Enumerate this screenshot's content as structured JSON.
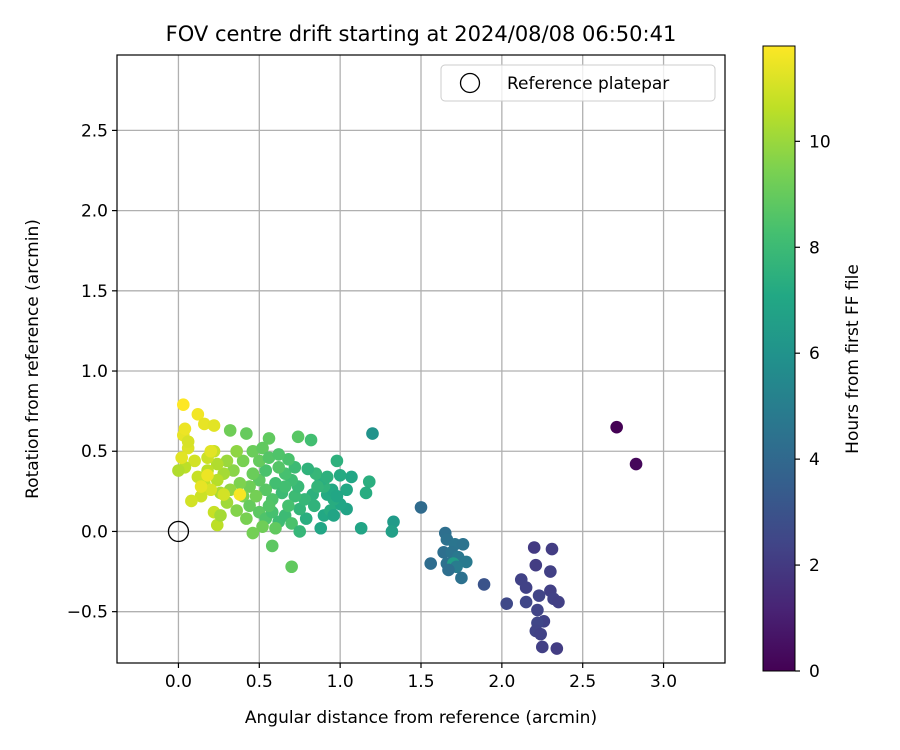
{
  "chart_data": {
    "type": "scatter",
    "title": "FOV centre drift starting at 2024/08/08 06:50:41",
    "xlabel": "Angular distance from reference (arcmin)",
    "ylabel": "Rotation from reference (arcmin)",
    "xlim": [
      -0.38,
      3.38
    ],
    "ylim": [
      -0.82,
      2.97
    ],
    "xticks": [
      0.0,
      0.5,
      1.0,
      1.5,
      2.0,
      2.5,
      3.0
    ],
    "xtick_labels": [
      "0.0",
      "0.5",
      "1.0",
      "1.5",
      "2.0",
      "2.5",
      "3.0"
    ],
    "yticks": [
      -0.5,
      0.0,
      0.5,
      1.0,
      1.5,
      2.0,
      2.5
    ],
    "ytick_labels": [
      "−0.5",
      "0.0",
      "0.5",
      "1.0",
      "1.5",
      "2.0",
      "2.5"
    ],
    "grid": true,
    "legend": {
      "placement": "top-right",
      "entries": [
        "Reference platepar"
      ]
    },
    "reference_point": {
      "x": 0.0,
      "y": 0.0,
      "name": "Reference platepar"
    },
    "colorbar": {
      "label": "Hours from first FF file",
      "range": [
        0,
        11.8
      ],
      "ticks": [
        0,
        2,
        4,
        6,
        8,
        10
      ],
      "tick_labels": [
        "0",
        "2",
        "4",
        "6",
        "8",
        "10"
      ],
      "colormap": "viridis"
    },
    "points": [
      {
        "x": 2.71,
        "y": 0.65,
        "c": 0.0
      },
      {
        "x": 2.83,
        "y": 0.42,
        "c": 0.2
      },
      {
        "x": 2.2,
        "y": -0.1,
        "c": 2.0
      },
      {
        "x": 2.31,
        "y": -0.11,
        "c": 2.1
      },
      {
        "x": 2.21,
        "y": -0.21,
        "c": 2.1
      },
      {
        "x": 2.3,
        "y": -0.25,
        "c": 2.2
      },
      {
        "x": 2.12,
        "y": -0.3,
        "c": 2.3
      },
      {
        "x": 2.15,
        "y": -0.35,
        "c": 2.3
      },
      {
        "x": 2.3,
        "y": -0.37,
        "c": 2.2
      },
      {
        "x": 2.23,
        "y": -0.4,
        "c": 2.4
      },
      {
        "x": 2.32,
        "y": -0.42,
        "c": 2.3
      },
      {
        "x": 2.15,
        "y": -0.44,
        "c": 2.5
      },
      {
        "x": 2.35,
        "y": -0.44,
        "c": 2.2
      },
      {
        "x": 2.03,
        "y": -0.45,
        "c": 2.6
      },
      {
        "x": 2.22,
        "y": -0.49,
        "c": 2.4
      },
      {
        "x": 2.26,
        "y": -0.56,
        "c": 2.3
      },
      {
        "x": 2.22,
        "y": -0.57,
        "c": 2.5
      },
      {
        "x": 2.21,
        "y": -0.62,
        "c": 2.4
      },
      {
        "x": 2.24,
        "y": -0.64,
        "c": 2.3
      },
      {
        "x": 2.25,
        "y": -0.72,
        "c": 2.2
      },
      {
        "x": 2.34,
        "y": -0.73,
        "c": 2.1
      },
      {
        "x": 1.89,
        "y": -0.33,
        "c": 3.0
      },
      {
        "x": 1.5,
        "y": 0.15,
        "c": 4.1
      },
      {
        "x": 1.65,
        "y": -0.01,
        "c": 4.3
      },
      {
        "x": 1.66,
        "y": -0.05,
        "c": 4.4
      },
      {
        "x": 1.71,
        "y": -0.08,
        "c": 4.6
      },
      {
        "x": 1.76,
        "y": -0.08,
        "c": 4.5
      },
      {
        "x": 1.64,
        "y": -0.13,
        "c": 4.3
      },
      {
        "x": 1.69,
        "y": -0.13,
        "c": 4.5
      },
      {
        "x": 1.73,
        "y": -0.16,
        "c": 4.7
      },
      {
        "x": 1.78,
        "y": -0.19,
        "c": 4.8
      },
      {
        "x": 1.56,
        "y": -0.2,
        "c": 4.2
      },
      {
        "x": 1.66,
        "y": -0.2,
        "c": 4.4
      },
      {
        "x": 1.7,
        "y": -0.2,
        "c": 6.5
      },
      {
        "x": 1.72,
        "y": -0.22,
        "c": 4.9
      },
      {
        "x": 1.67,
        "y": -0.24,
        "c": 4.3
      },
      {
        "x": 1.75,
        "y": -0.29,
        "c": 4.4
      },
      {
        "x": 1.2,
        "y": 0.61,
        "c": 6.0
      },
      {
        "x": 1.33,
        "y": 0.06,
        "c": 6.4
      },
      {
        "x": 1.32,
        "y": 0.0,
        "c": 6.6
      },
      {
        "x": 1.13,
        "y": 0.02,
        "c": 6.9
      },
      {
        "x": 1.18,
        "y": 0.31,
        "c": 7.4
      },
      {
        "x": 1.16,
        "y": 0.24,
        "c": 7.3
      },
      {
        "x": 1.07,
        "y": 0.34,
        "c": 7.0
      },
      {
        "x": 1.0,
        "y": 0.35,
        "c": 7.2
      },
      {
        "x": 1.04,
        "y": 0.26,
        "c": 7.1
      },
      {
        "x": 0.98,
        "y": 0.44,
        "c": 7.5
      },
      {
        "x": 0.82,
        "y": 0.57,
        "c": 8.2
      },
      {
        "x": 0.74,
        "y": 0.59,
        "c": 8.7
      },
      {
        "x": 0.56,
        "y": 0.58,
        "c": 8.9
      },
      {
        "x": 1.04,
        "y": 0.14,
        "c": 6.8
      },
      {
        "x": 1.0,
        "y": 0.17,
        "c": 7.0
      },
      {
        "x": 0.96,
        "y": 0.2,
        "c": 7.3
      },
      {
        "x": 0.92,
        "y": 0.23,
        "c": 7.2
      },
      {
        "x": 0.95,
        "y": 0.26,
        "c": 7.1
      },
      {
        "x": 0.9,
        "y": 0.28,
        "c": 7.6
      },
      {
        "x": 0.88,
        "y": 0.32,
        "c": 7.4
      },
      {
        "x": 0.85,
        "y": 0.36,
        "c": 7.8
      },
      {
        "x": 0.8,
        "y": 0.39,
        "c": 7.6
      },
      {
        "x": 0.83,
        "y": 0.23,
        "c": 7.5
      },
      {
        "x": 0.9,
        "y": 0.1,
        "c": 7.1
      },
      {
        "x": 0.94,
        "y": 0.13,
        "c": 7.3
      },
      {
        "x": 0.88,
        "y": 0.02,
        "c": 7.0
      },
      {
        "x": 0.79,
        "y": 0.08,
        "c": 7.4
      },
      {
        "x": 0.75,
        "y": 0.14,
        "c": 7.7
      },
      {
        "x": 0.78,
        "y": 0.2,
        "c": 7.8
      },
      {
        "x": 0.72,
        "y": 0.22,
        "c": 8.0
      },
      {
        "x": 0.74,
        "y": 0.28,
        "c": 7.9
      },
      {
        "x": 0.7,
        "y": 0.32,
        "c": 8.1
      },
      {
        "x": 0.66,
        "y": 0.36,
        "c": 8.3
      },
      {
        "x": 0.72,
        "y": 0.4,
        "c": 8.0
      },
      {
        "x": 0.68,
        "y": 0.45,
        "c": 8.4
      },
      {
        "x": 0.62,
        "y": 0.4,
        "c": 8.6
      },
      {
        "x": 0.6,
        "y": 0.3,
        "c": 8.2
      },
      {
        "x": 0.64,
        "y": 0.24,
        "c": 8.0
      },
      {
        "x": 0.58,
        "y": 0.2,
        "c": 8.5
      },
      {
        "x": 0.54,
        "y": 0.26,
        "c": 8.7
      },
      {
        "x": 0.5,
        "y": 0.32,
        "c": 8.8
      },
      {
        "x": 0.54,
        "y": 0.38,
        "c": 8.4
      },
      {
        "x": 0.5,
        "y": 0.44,
        "c": 9.0
      },
      {
        "x": 0.46,
        "y": 0.36,
        "c": 9.1
      },
      {
        "x": 0.44,
        "y": 0.28,
        "c": 9.2
      },
      {
        "x": 0.4,
        "y": 0.22,
        "c": 9.4
      },
      {
        "x": 0.44,
        "y": 0.16,
        "c": 9.0
      },
      {
        "x": 0.5,
        "y": 0.12,
        "c": 8.8
      },
      {
        "x": 0.54,
        "y": 0.08,
        "c": 8.5
      },
      {
        "x": 0.58,
        "y": 0.12,
        "c": 8.3
      },
      {
        "x": 0.62,
        "y": 0.06,
        "c": 8.1
      },
      {
        "x": 0.66,
        "y": 0.1,
        "c": 8.0
      },
      {
        "x": 0.7,
        "y": 0.05,
        "c": 8.4
      },
      {
        "x": 0.75,
        "y": 0.0,
        "c": 7.8
      },
      {
        "x": 0.6,
        "y": 0.02,
        "c": 8.9
      },
      {
        "x": 0.52,
        "y": 0.03,
        "c": 9.2
      },
      {
        "x": 0.46,
        "y": -0.01,
        "c": 9.3
      },
      {
        "x": 0.58,
        "y": -0.09,
        "c": 8.8
      },
      {
        "x": 0.7,
        "y": -0.22,
        "c": 8.9
      },
      {
        "x": 0.36,
        "y": 0.13,
        "c": 9.6
      },
      {
        "x": 0.38,
        "y": 0.3,
        "c": 9.5
      },
      {
        "x": 0.34,
        "y": 0.38,
        "c": 9.7
      },
      {
        "x": 0.4,
        "y": 0.44,
        "c": 9.4
      },
      {
        "x": 0.36,
        "y": 0.5,
        "c": 9.8
      },
      {
        "x": 0.3,
        "y": 0.44,
        "c": 10.0
      },
      {
        "x": 0.28,
        "y": 0.36,
        "c": 10.2
      },
      {
        "x": 0.32,
        "y": 0.26,
        "c": 9.9
      },
      {
        "x": 0.3,
        "y": 0.18,
        "c": 10.1
      },
      {
        "x": 0.26,
        "y": 0.24,
        "c": 10.3
      },
      {
        "x": 0.24,
        "y": 0.32,
        "c": 10.5
      },
      {
        "x": 0.24,
        "y": 0.42,
        "c": 10.4
      },
      {
        "x": 0.22,
        "y": 0.5,
        "c": 10.8
      },
      {
        "x": 0.18,
        "y": 0.46,
        "c": 10.9
      },
      {
        "x": 0.18,
        "y": 0.38,
        "c": 10.6
      },
      {
        "x": 0.16,
        "y": 0.3,
        "c": 10.7
      },
      {
        "x": 0.2,
        "y": 0.26,
        "c": 11.1
      },
      {
        "x": 0.14,
        "y": 0.22,
        "c": 10.9
      },
      {
        "x": 0.12,
        "y": 0.34,
        "c": 10.8
      },
      {
        "x": 0.1,
        "y": 0.44,
        "c": 11.0
      },
      {
        "x": 0.06,
        "y": 0.52,
        "c": 11.2
      },
      {
        "x": 0.04,
        "y": 0.4,
        "c": 10.6
      },
      {
        "x": 0.0,
        "y": 0.38,
        "c": 10.4
      },
      {
        "x": 0.02,
        "y": 0.46,
        "c": 11.3
      },
      {
        "x": 0.03,
        "y": 0.6,
        "c": 11.4
      },
      {
        "x": 0.06,
        "y": 0.56,
        "c": 11.1
      },
      {
        "x": 0.04,
        "y": 0.64,
        "c": 11.5
      },
      {
        "x": 0.03,
        "y": 0.79,
        "c": 11.8
      },
      {
        "x": 0.12,
        "y": 0.73,
        "c": 11.6
      },
      {
        "x": 0.16,
        "y": 0.67,
        "c": 11.4
      },
      {
        "x": 0.22,
        "y": 0.66,
        "c": 11.3
      },
      {
        "x": 0.32,
        "y": 0.63,
        "c": 9.2
      },
      {
        "x": 0.42,
        "y": 0.61,
        "c": 9.0
      },
      {
        "x": 0.08,
        "y": 0.19,
        "c": 11.0
      },
      {
        "x": 0.14,
        "y": 0.28,
        "c": 11.4
      },
      {
        "x": 0.22,
        "y": 0.12,
        "c": 10.8
      },
      {
        "x": 0.24,
        "y": 0.04,
        "c": 10.6
      },
      {
        "x": 0.26,
        "y": 0.1,
        "c": 10.2
      },
      {
        "x": 0.28,
        "y": 0.23,
        "c": 11.0
      },
      {
        "x": 0.38,
        "y": 0.23,
        "c": 11.7
      },
      {
        "x": 0.18,
        "y": 0.35,
        "c": 11.5
      },
      {
        "x": 0.2,
        "y": 0.5,
        "c": 11.3
      },
      {
        "x": 0.46,
        "y": 0.5,
        "c": 9.1
      },
      {
        "x": 0.52,
        "y": 0.52,
        "c": 8.9
      },
      {
        "x": 0.56,
        "y": 0.46,
        "c": 8.6
      },
      {
        "x": 0.62,
        "y": 0.48,
        "c": 8.5
      },
      {
        "x": 0.66,
        "y": 0.28,
        "c": 8.2
      },
      {
        "x": 0.48,
        "y": 0.22,
        "c": 9.3
      },
      {
        "x": 0.42,
        "y": 0.08,
        "c": 9.4
      },
      {
        "x": 0.56,
        "y": 0.16,
        "c": 8.6
      },
      {
        "x": 0.68,
        "y": 0.16,
        "c": 8.3
      },
      {
        "x": 0.84,
        "y": 0.16,
        "c": 7.6
      },
      {
        "x": 0.92,
        "y": 0.34,
        "c": 7.5
      },
      {
        "x": 0.86,
        "y": 0.28,
        "c": 7.7
      },
      {
        "x": 0.98,
        "y": 0.22,
        "c": 7.0
      },
      {
        "x": 0.96,
        "y": 0.1,
        "c": 6.9
      }
    ]
  }
}
